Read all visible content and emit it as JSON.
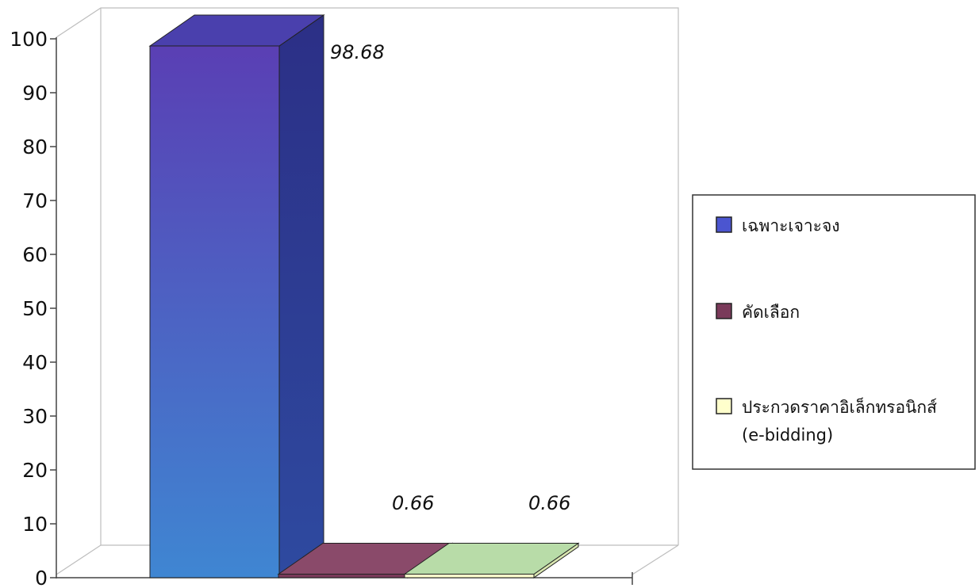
{
  "chart_data": {
    "type": "bar",
    "categories": [
      "เฉพาะเจาะจง",
      "คัดเลือก",
      "ประกวดราคาอิเล็กทรอนิกส์ (e-bidding)"
    ],
    "values": [
      98.68,
      0.66,
      0.66
    ],
    "value_labels": [
      "98.68",
      "0.66",
      "0.66"
    ],
    "y_ticks": [
      "0",
      "10",
      "20",
      "30",
      "40",
      "50",
      "60",
      "70",
      "80",
      "90",
      "100"
    ],
    "ylim": [
      0,
      100
    ],
    "title": "",
    "xlabel": "",
    "ylabel": "",
    "grid": false,
    "three_d": true,
    "legend": {
      "position": "right",
      "items": [
        {
          "lines": [
            "เฉพาะเจาะจง"
          ],
          "color": "#4b55d0"
        },
        {
          "lines": [
            "คัดเลือก"
          ],
          "color": "#7a3a5a"
        },
        {
          "lines": [
            "ประกวดราคาอิเล็กทรอนิกส์",
            "(e-bidding)"
          ],
          "color": "#ffffcc"
        }
      ]
    },
    "colors": {
      "bar1_front_top": "#5a3fb4",
      "bar1_front_bottom": "#3f86d2",
      "bar1_side": "#2f3588",
      "bar1_top": "#4a40ad",
      "bar2_front": "#7a3a5a",
      "bar2_top": "#8a4a6a",
      "bar3_front": "#ffffcc",
      "bar3_top": "#b8dca8"
    }
  }
}
